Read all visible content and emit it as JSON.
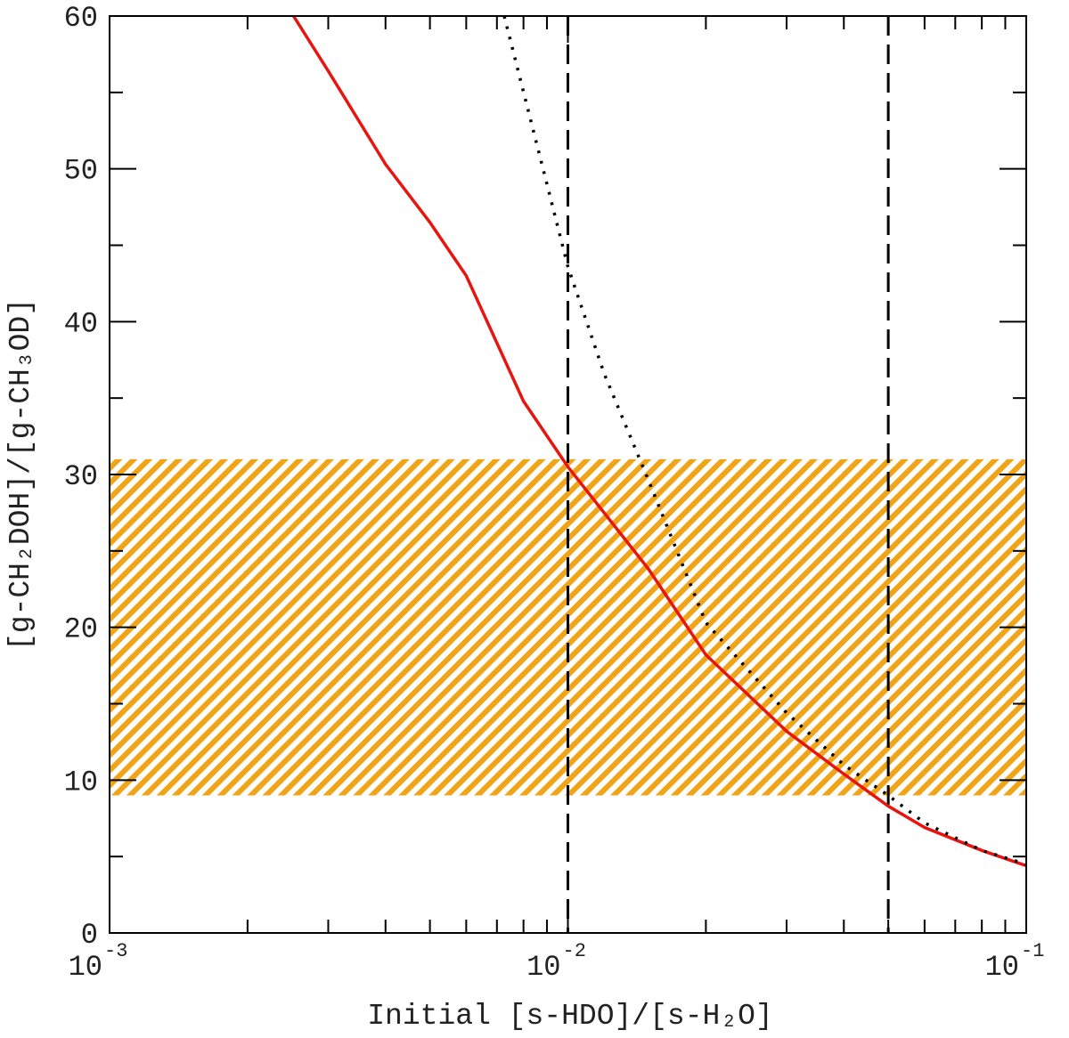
{
  "chart_data": {
    "type": "line",
    "xlabel": "Initial [s-HDO]/[s-H₂O]",
    "ylabel": "[g-CH₂DOH]/[g-CH₃OD]",
    "xlog": true,
    "xlim": [
      0.001,
      0.1
    ],
    "ylim": [
      0,
      60
    ],
    "xticks": [
      {
        "value": 0.001,
        "label": "10",
        "exponent": "-3"
      },
      {
        "value": 0.01,
        "label": "10",
        "exponent": "-2"
      },
      {
        "value": 0.1,
        "label": "10",
        "exponent": "-1"
      }
    ],
    "xminorticks": [
      0.002,
      0.003,
      0.004,
      0.005,
      0.006,
      0.007,
      0.008,
      0.009,
      0.02,
      0.03,
      0.04,
      0.05,
      0.06,
      0.07,
      0.08,
      0.09
    ],
    "yticks": [
      0,
      10,
      20,
      30,
      40,
      50,
      60
    ],
    "yminorticks": [
      5,
      15,
      25,
      35,
      45,
      55
    ],
    "bands": [
      {
        "ylim": [
          9,
          31
        ],
        "color": "#f0a518"
      }
    ],
    "vlines": [
      0.01,
      0.05
    ],
    "series": [
      {
        "color": "#e8150f",
        "style": "solid",
        "x": [
          0.00252,
          0.003,
          0.004,
          0.005,
          0.006,
          0.008,
          0.01,
          0.015,
          0.02,
          0.03,
          0.04,
          0.05,
          0.06,
          0.08,
          0.1
        ],
        "values": [
          60,
          56.4,
          50.3,
          46.5,
          43,
          34.8,
          30.5,
          23.8,
          18.2,
          13.2,
          10.4,
          8.3,
          6.9,
          5.4,
          4.4
        ]
      },
      {
        "color": "#000000",
        "style": "dotted",
        "x": [
          0.00726,
          0.01,
          0.012,
          0.015,
          0.02,
          0.03,
          0.04,
          0.05,
          0.06,
          0.08,
          0.1
        ],
        "values": [
          60,
          43.6,
          36.6,
          29.6,
          20.3,
          14.4,
          11,
          9,
          7.2,
          5.4,
          4.5
        ]
      }
    ]
  }
}
